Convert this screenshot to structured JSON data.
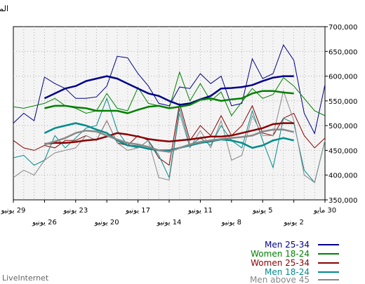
{
  "chart_data": {
    "type": "line",
    "ylabel": "المرات",
    "ylim": [
      350000,
      700000
    ],
    "y_ticks": [
      "350,000",
      "400,000",
      "450,000",
      "500,000",
      "550,000",
      "600,000",
      "650,000",
      "700,000"
    ],
    "x_ticks_upper": [
      "30 مايو",
      "5 يونيو",
      "11 يونيو",
      "17 يونيو",
      "23 يونيو",
      "29 يونيو"
    ],
    "x_ticks_lower": [
      "2 يونيو",
      "8 يونيو",
      "14 يونيو",
      "20 يونيو",
      "26 يونيو"
    ],
    "legend_position": "bottom-right",
    "grid": true,
    "x": [
      "05-30",
      "05-31",
      "06-01",
      "06-02",
      "06-03",
      "06-04",
      "06-05",
      "06-06",
      "06-07",
      "06-08",
      "06-09",
      "06-10",
      "06-11",
      "06-12",
      "06-13",
      "06-14",
      "06-15",
      "06-16",
      "06-17",
      "06-18",
      "06-19",
      "06-20",
      "06-21",
      "06-22",
      "06-23",
      "06-24",
      "06-25",
      "06-26",
      "06-27",
      "06-28",
      "06-29"
    ],
    "series": [
      {
        "name": "Men 25-34",
        "color": "#00008b",
        "values": [
          583000,
          484000,
          525000,
          632000,
          663000,
          605000,
          595000,
          635000,
          545000,
          540000,
          600000,
          585000,
          605000,
          575000,
          578000,
          540000,
          545000,
          580000,
          605000,
          637000,
          640000,
          580000,
          558000,
          555000,
          555000,
          575000,
          585000,
          598000,
          510000,
          525000,
          505000
        ],
        "trend": [
          585000,
          590000,
          595000,
          600000,
          600000,
          597000,
          590000,
          582000,
          578000,
          576000,
          575000,
          560000,
          553000,
          545000,
          542000,
          550000,
          560000,
          565000,
          575000,
          585000,
          595000,
          600000,
          595000,
          590000,
          580000,
          575000,
          565000,
          555000,
          550000,
          547000,
          542000
        ]
      },
      {
        "name": "Women 18-24",
        "color": "#008000",
        "values": [
          520000,
          530000,
          555000,
          580000,
          597000,
          563000,
          555000,
          575000,
          548000,
          520000,
          568000,
          550000,
          585000,
          550000,
          608000,
          535000,
          540000,
          545000,
          577000,
          530000,
          535000,
          565000,
          530000,
          525000,
          535000,
          540000,
          555000,
          545000,
          540000,
          535000,
          538000
        ],
        "trend": [
          557000,
          560000,
          562000,
          565000,
          567000,
          570000,
          570000,
          565000,
          555000,
          553000,
          550000,
          555000,
          552000,
          542000,
          538000,
          535000,
          540000,
          538000,
          532000,
          525000,
          530000,
          530000,
          530000,
          535000,
          537000,
          540000,
          540000,
          535000,
          533000,
          530000,
          530000
        ]
      },
      {
        "name": "Women 25-34",
        "color": "#8b0000",
        "values": [
          475000,
          455000,
          480000,
          525000,
          515000,
          480000,
          485000,
          540000,
          500000,
          480000,
          520000,
          480000,
          500000,
          470000,
          545000,
          420000,
          435000,
          470000,
          480000,
          460000,
          465000,
          510000,
          470000,
          480000,
          470000,
          470000,
          455000,
          460000,
          450000,
          455000,
          470000
        ],
        "trend": [
          490000,
          495000,
          500000,
          505000,
          505000,
          503000,
          495000,
          490000,
          485000,
          480000,
          478000,
          478000,
          475000,
          472000,
          470000,
          468000,
          470000,
          473000,
          478000,
          482000,
          485000,
          478000,
          472000,
          470000,
          467000,
          465000,
          465000,
          463000,
          462000,
          461000,
          460000
        ]
      },
      {
        "name": "Men 18-24",
        "color": "#008b8b",
        "values": [
          470000,
          385000,
          410000,
          505000,
          515000,
          415000,
          470000,
          530000,
          455000,
          470000,
          500000,
          460000,
          475000,
          460000,
          535000,
          395000,
          440000,
          470000,
          455000,
          460000,
          490000,
          555000,
          500000,
          495000,
          475000,
          455000,
          480000,
          430000,
          420000,
          440000,
          435000
        ],
        "trend": [
          460000,
          462000,
          465000,
          470000,
          475000,
          470000,
          460000,
          455000,
          465000,
          470000,
          472000,
          468000,
          465000,
          460000,
          455000,
          450000,
          450000,
          453000,
          458000,
          460000,
          470000,
          485000,
          492000,
          500000,
          505000,
          500000,
          495000,
          485000,
          470000,
          462000,
          452000
        ]
      },
      {
        "name": "Men above 45",
        "color": "#888888",
        "values": [
          470000,
          385000,
          400000,
          510000,
          570000,
          480000,
          480000,
          520000,
          440000,
          430000,
          510000,
          455000,
          490000,
          455000,
          525000,
          390000,
          395000,
          470000,
          455000,
          450000,
          465000,
          510000,
          470000,
          480000,
          455000,
          450000,
          445000,
          430000,
          400000,
          410000,
          395000
        ],
        "trend": [
          475000,
          478000,
          482000,
          487000,
          492000,
          492000,
          488000,
          480000,
          477000,
          475000,
          473000,
          470000,
          467000,
          462000,
          455000,
          447000,
          450000,
          457000,
          462000,
          465000,
          472000,
          480000,
          488000,
          490000,
          485000,
          475000,
          468000,
          462000,
          458000,
          455000,
          450000
        ]
      }
    ]
  },
  "legend": [
    {
      "label": "Men 25-34",
      "color": "#00008b"
    },
    {
      "label": "Women 18-24",
      "color": "#008000"
    },
    {
      "label": "Women 25-34",
      "color": "#8b0000"
    },
    {
      "label": "Men 18-24",
      "color": "#008b8b"
    },
    {
      "label": "Men above 45",
      "color": "#888888"
    }
  ],
  "footer": "LiveInternet"
}
